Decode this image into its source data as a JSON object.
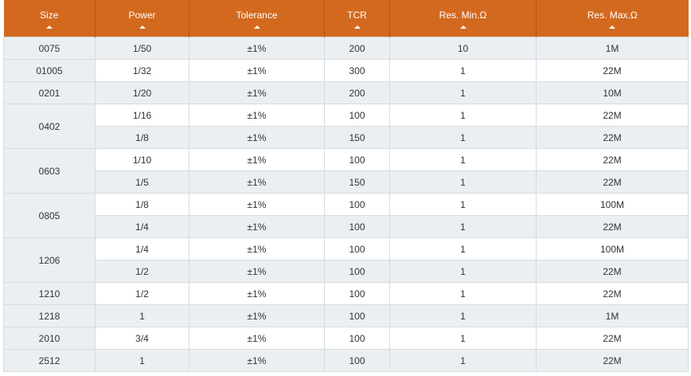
{
  "headers": [
    "Size",
    "Power",
    "Tolerance",
    "TCR",
    "Res. Min.Ω",
    "Res. Max.Ω"
  ],
  "rows": [
    {
      "size": "0075",
      "rowspan": 1,
      "cells": [
        "1/50",
        "±1%",
        "200",
        "10",
        "1M"
      ]
    },
    {
      "size": "01005",
      "rowspan": 1,
      "cells": [
        "1/32",
        "±1%",
        "300",
        "1",
        "22M"
      ]
    },
    {
      "size": "0201",
      "rowspan": 1,
      "cells": [
        "1/20",
        "±1%",
        "200",
        "1",
        "10M"
      ]
    },
    {
      "size": "0402",
      "rowspan": 2,
      "cells": [
        "1/16",
        "±1%",
        "100",
        "1",
        "22M"
      ]
    },
    {
      "size": null,
      "cells": [
        "1/8",
        "±1%",
        "150",
        "1",
        "22M"
      ]
    },
    {
      "size": "0603",
      "rowspan": 2,
      "cells": [
        "1/10",
        "±1%",
        "100",
        "1",
        "22M"
      ]
    },
    {
      "size": null,
      "cells": [
        "1/5",
        "±1%",
        "150",
        "1",
        "22M"
      ]
    },
    {
      "size": "0805",
      "rowspan": 2,
      "cells": [
        "1/8",
        "±1%",
        "100",
        "1",
        "100M"
      ]
    },
    {
      "size": null,
      "cells": [
        "1/4",
        "±1%",
        "100",
        "1",
        "22M"
      ]
    },
    {
      "size": "1206",
      "rowspan": 2,
      "cells": [
        "1/4",
        "±1%",
        "100",
        "1",
        "100M"
      ]
    },
    {
      "size": null,
      "cells": [
        "1/2",
        "±1%",
        "100",
        "1",
        "22M"
      ]
    },
    {
      "size": "1210",
      "rowspan": 1,
      "cells": [
        "1/2",
        "±1%",
        "100",
        "1",
        "22M"
      ]
    },
    {
      "size": "1218",
      "rowspan": 1,
      "cells": [
        "1",
        "±1%",
        "100",
        "1",
        "1M"
      ]
    },
    {
      "size": "2010",
      "rowspan": 1,
      "cells": [
        "3/4",
        "±1%",
        "100",
        "1",
        "22M"
      ]
    },
    {
      "size": "2512",
      "rowspan": 1,
      "cells": [
        "1",
        "±1%",
        "100",
        "1",
        "22M"
      ]
    }
  ]
}
